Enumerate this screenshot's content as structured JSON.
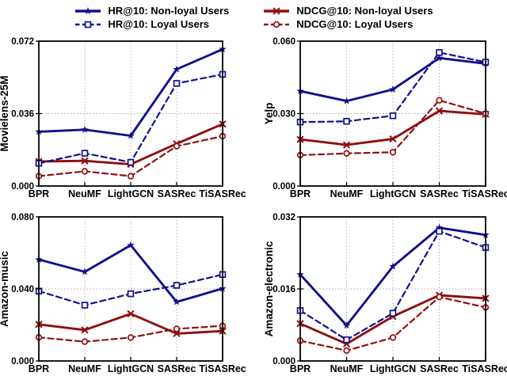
{
  "figure": {
    "background": "#ffffff",
    "axis_color": "#000000",
    "grid_color": "#aaaaaa"
  },
  "legend": {
    "position": "top-center",
    "entries": [
      {
        "label": "HR@10: Non-loyal Users",
        "color": "#10108C",
        "line": "solid",
        "marker": "star",
        "marker_icon": "star-marker-icon"
      },
      {
        "label": "NDCG@10: Non-loyal Users",
        "color": "#8E1010",
        "line": "solid",
        "marker": "x",
        "marker_icon": "x-marker-icon"
      },
      {
        "label": "HR@10: Loyal Users",
        "color": "#10108C",
        "line": "dashed",
        "marker": "square",
        "marker_icon": "square-marker-icon"
      },
      {
        "label": "NDCG@10: Loyal Users",
        "color": "#8E1010",
        "line": "dashed",
        "marker": "circle",
        "marker_icon": "circle-marker-icon"
      }
    ]
  },
  "chart_data": [
    {
      "type": "line",
      "ylabel": "Movielens-25M",
      "categories": [
        "BPR",
        "NeuMF",
        "LightGCN",
        "SASRec",
        "TiSASRec"
      ],
      "ylim": [
        0,
        0.072
      ],
      "yticks": [
        "0.000",
        "0.036",
        "0.072"
      ],
      "grid": "dotted",
      "legend_position": "figure-top",
      "series": [
        {
          "name": "HR@10: Non-loyal Users",
          "values": [
            0.027,
            0.028,
            0.025,
            0.058,
            0.068
          ]
        },
        {
          "name": "HR@10: Loyal Users",
          "values": [
            0.0113,
            0.0163,
            0.0118,
            0.051,
            0.0555
          ]
        },
        {
          "name": "NDCG@10: Non-loyal Users",
          "values": [
            0.0122,
            0.0125,
            0.0108,
            0.021,
            0.0308
          ]
        },
        {
          "name": "NDCG@10: Loyal Users",
          "values": [
            0.0049,
            0.0073,
            0.0049,
            0.0198,
            0.0248
          ]
        }
      ]
    },
    {
      "type": "line",
      "ylabel": "Yelp",
      "categories": [
        "BPR",
        "NeuMF",
        "LightGCN",
        "SASRec",
        "TiSASRec"
      ],
      "ylim": [
        0,
        0.06
      ],
      "yticks": [
        "0.000",
        "0.030",
        "0.060"
      ],
      "grid": "dotted",
      "legend_position": "figure-top",
      "series": [
        {
          "name": "HR@10: Non-loyal Users",
          "values": [
            0.0393,
            0.0352,
            0.04,
            0.053,
            0.0507
          ]
        },
        {
          "name": "HR@10: Loyal Users",
          "values": [
            0.0265,
            0.0268,
            0.0291,
            0.0553,
            0.0513
          ]
        },
        {
          "name": "NDCG@10: Non-loyal Users",
          "values": [
            0.0193,
            0.017,
            0.0195,
            0.0311,
            0.0297
          ]
        },
        {
          "name": "NDCG@10: Loyal Users",
          "values": [
            0.0128,
            0.0135,
            0.014,
            0.0355,
            0.03
          ]
        }
      ]
    },
    {
      "type": "line",
      "ylabel": "Amazon-music",
      "categories": [
        "BPR",
        "NeuMF",
        "LightGCN",
        "SASRec",
        "TiSASRec"
      ],
      "ylim": [
        0,
        0.08
      ],
      "yticks": [
        "0.000",
        "0.040",
        "0.080"
      ],
      "grid": "dotted",
      "legend_position": "figure-top",
      "series": [
        {
          "name": "HR@10: Non-loyal Users",
          "values": [
            0.0563,
            0.0495,
            0.0643,
            0.0328,
            0.0402
          ]
        },
        {
          "name": "HR@10: Loyal Users",
          "values": [
            0.0388,
            0.031,
            0.0373,
            0.042,
            0.048
          ]
        },
        {
          "name": "NDCG@10: Non-loyal Users",
          "values": [
            0.0203,
            0.0172,
            0.0262,
            0.0152,
            0.0166
          ]
        },
        {
          "name": "NDCG@10: Loyal Users",
          "values": [
            0.0131,
            0.0107,
            0.013,
            0.0178,
            0.0195
          ]
        }
      ]
    },
    {
      "type": "line",
      "ylabel": "Amazon-electronic",
      "categories": [
        "BPR",
        "NeuMF",
        "LightGCN",
        "SASRec",
        "TiSASRec"
      ],
      "ylim": [
        0,
        0.032
      ],
      "yticks": [
        "0.000",
        "0.016",
        "0.032"
      ],
      "grid": "dotted",
      "legend_position": "figure-top",
      "series": [
        {
          "name": "HR@10: Non-loyal Users",
          "values": [
            0.0192,
            0.0079,
            0.021,
            0.0296,
            0.028
          ]
        },
        {
          "name": "HR@10: Loyal Users",
          "values": [
            0.0112,
            0.0047,
            0.0106,
            0.0288,
            0.0252
          ]
        },
        {
          "name": "NDCG@10: Non-loyal Users",
          "values": [
            0.0083,
            0.0038,
            0.0099,
            0.0146,
            0.0139
          ]
        },
        {
          "name": "NDCG@10: Loyal Users",
          "values": [
            0.0045,
            0.0023,
            0.0052,
            0.0142,
            0.0119
          ]
        }
      ]
    }
  ]
}
